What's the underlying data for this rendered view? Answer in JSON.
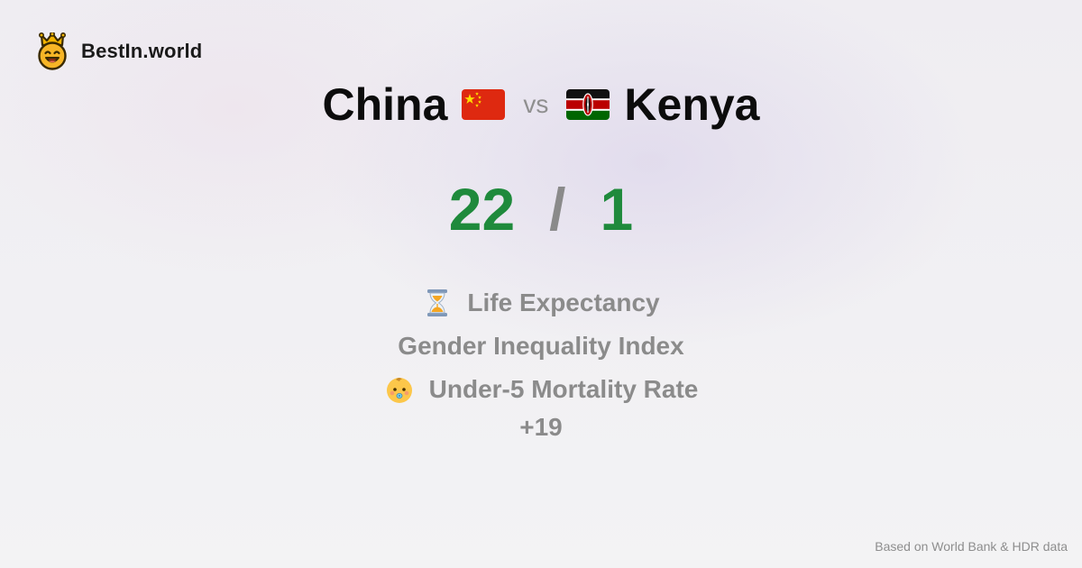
{
  "brand": {
    "name": "BestIn.world",
    "logo_icon": "crowned-smiley-logo-icon"
  },
  "comparison": {
    "left_country": "China",
    "left_flag": "china-flag-icon",
    "vs_label": "vs",
    "right_country": "Kenya",
    "right_flag": "kenya-flag-icon"
  },
  "score": {
    "left": "22",
    "separator": "/",
    "right": "1",
    "color": "#1f8a3c"
  },
  "metrics": [
    {
      "label": "Life Expectancy",
      "icon": "hourglass-icon"
    },
    {
      "label": "Gender Inequality Index",
      "icon": ""
    },
    {
      "label": "Under-5 Mortality Rate",
      "icon": "baby-icon"
    }
  ],
  "more_count": "+19",
  "footer": {
    "source": "Based on World Bank & HDR data"
  }
}
